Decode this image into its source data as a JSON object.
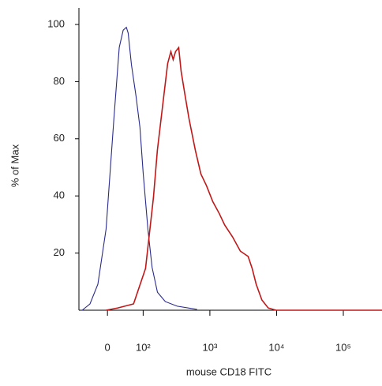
{
  "chart_data": {
    "type": "line",
    "xscale": "biexponential",
    "xlabel": "mouse CD18 FITC",
    "ylabel": "% of Max",
    "xlim": [
      -80,
      380000
    ],
    "ylim": [
      0,
      105.8
    ],
    "xticks": [
      0,
      {
        "value": 100,
        "label": "10²"
      },
      {
        "value": 1000,
        "label": "10³"
      },
      {
        "value": 10000,
        "label": "10⁴"
      },
      {
        "value": 100000,
        "label": "10⁵"
      }
    ],
    "yticks": [
      20,
      40,
      60,
      80,
      100
    ],
    "series": [
      {
        "color": "#2a2a8c",
        "x": [
          -71,
          -49,
          -27,
          -4,
          18,
          33,
          44,
          53,
          58,
          67,
          80,
          91,
          100,
          118,
          136,
          164,
          215,
          324,
          641
        ],
        "values": [
          0,
          2.2,
          9.1,
          28.4,
          67,
          92,
          98,
          99,
          97,
          86,
          75,
          64,
          48,
          28,
          15,
          6.3,
          3,
          1.4,
          0.3
        ]
      },
      {
        "color": "#c01818",
        "x": [
          -4,
          29,
          73,
          108.5,
          142.6,
          163.5,
          198,
          233,
          260,
          282,
          306,
          341,
          371,
          424,
          487,
          606,
          733,
          888,
          1106,
          1377,
          1670,
          2187,
          2864,
          3750,
          4310,
          4950,
          6010,
          7480,
          9830,
          380000
        ],
        "values": [
          0,
          0.8,
          2.2,
          14.6,
          39.4,
          56,
          72.6,
          86.3,
          90.5,
          87.7,
          90.5,
          91.9,
          83.6,
          75.3,
          67,
          56,
          47.7,
          43.6,
          38,
          33.9,
          29.8,
          25.7,
          20.7,
          18.8,
          14.6,
          9.1,
          3.6,
          0.8,
          0,
          0
        ]
      }
    ]
  }
}
